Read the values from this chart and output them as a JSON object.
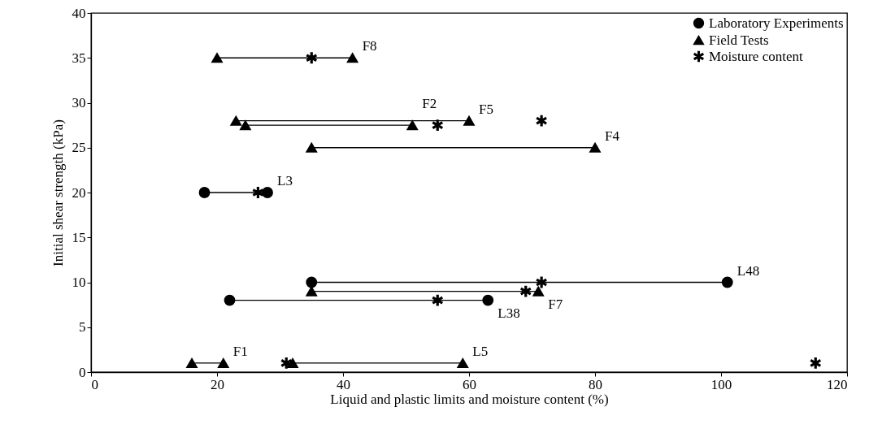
{
  "chart_data": {
    "type": "line",
    "xlabel": "Liquid and plastic limits and moisture content (%)",
    "ylabel": "Initial shear strength (kPa)",
    "xlim": [
      0,
      120
    ],
    "xticks": [
      0,
      20,
      40,
      60,
      80,
      100,
      120
    ],
    "ylim": [
      0,
      40
    ],
    "yticks": [
      0,
      5,
      10,
      15,
      20,
      25,
      30,
      35,
      40
    ],
    "grid": false,
    "legend": "top right",
    "series": [
      {
        "name": "Laboratory Experiments",
        "marker": "circle",
        "color": "#000000",
        "x": [
          18,
          28,
          null,
          35,
          101,
          null,
          22,
          63
        ],
        "values": [
          20,
          20,
          null,
          10,
          10,
          null,
          8,
          8
        ]
      },
      {
        "name": "Field Tests",
        "marker": "triangle",
        "color": "#000000",
        "x": [
          20,
          41.5,
          null,
          23,
          60,
          null,
          24.5,
          51,
          null,
          35,
          80,
          null,
          35,
          71,
          null,
          16,
          21,
          null,
          32,
          59
        ],
        "values": [
          35,
          35,
          null,
          28,
          28,
          null,
          27.5,
          27.5,
          null,
          25,
          25,
          null,
          9,
          9,
          null,
          1,
          1,
          null,
          1,
          1
        ]
      },
      {
        "name": "Moisture content",
        "type": "scatter",
        "marker": "star",
        "color": "#000000",
        "x": [
          35,
          55,
          71.5,
          26.5,
          71.5,
          69,
          55,
          31,
          115
        ],
        "values": [
          35,
          27.5,
          28,
          20,
          10,
          9,
          8,
          1,
          1
        ]
      }
    ],
    "annotations": [
      {
        "text": "F8",
        "x": 41.5,
        "y": 35
      },
      {
        "text": "F2",
        "x": 51,
        "y": 27.5
      },
      {
        "text": "F5",
        "x": 60,
        "y": 28
      },
      {
        "text": "F4",
        "x": 80,
        "y": 25
      },
      {
        "text": "L3",
        "x": 28,
        "y": 20
      },
      {
        "text": "F7",
        "x": 71,
        "y": 9
      },
      {
        "text": "L48",
        "x": 101,
        "y": 10
      },
      {
        "text": "L38",
        "x": 63,
        "y": 8
      },
      {
        "text": "F1",
        "x": 21,
        "y": 1
      },
      {
        "text": "L5",
        "x": 59,
        "y": 1
      }
    ]
  }
}
